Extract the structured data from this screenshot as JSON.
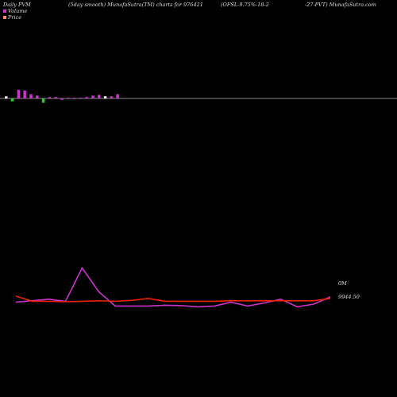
{
  "header": {
    "seg1": "Daily PVM",
    "seg2": "(5day smooth) MunafaSutra(TM) charts for 976421",
    "seg3": "(OFSL-9.75%-18-2",
    "seg4": "-27-PVT) MunafaSutra.com"
  },
  "legend": [
    {
      "label": "Volume",
      "color": "#cc33cc"
    },
    {
      "label": "Price",
      "color": "#ff8866"
    }
  ],
  "chart_data": {
    "type": "line",
    "volume_bars": [
      3,
      -4,
      12,
      11,
      6,
      4,
      -6,
      2,
      2,
      -2,
      1,
      1,
      1,
      2,
      4,
      5,
      3,
      3,
      6
    ],
    "volume_bar_colors": [
      "#ffffff",
      "#33cc33",
      "#cc33cc",
      "#cc33cc",
      "#cc33cc",
      "#cc33cc",
      "#33cc33",
      "#cc33cc",
      "#cc33cc",
      "#cc33cc",
      "#cc33cc",
      "#cc33cc",
      "#cc33cc",
      "#cc33cc",
      "#cc33cc",
      "#cc33cc",
      "#ffffff",
      "#cc33cc",
      "#cc33cc"
    ],
    "series": [
      {
        "values": [
          30,
          34,
          38,
          32,
          120,
          58,
          20,
          20,
          20,
          22,
          21,
          18,
          20,
          30,
          20,
          28,
          38,
          18,
          25,
          44
        ]
      },
      {
        "values": [
          10100,
          9990,
          9990,
          9980,
          9990,
          10000,
          9990,
          10010,
          10050,
          9990,
          9990,
          9990,
          9990,
          10000,
          10000,
          10000,
          10000,
          10000,
          10000,
          10050
        ]
      }
    ],
    "annotations": {
      "volume_label": "0M",
      "price_label": "9944.50"
    }
  }
}
